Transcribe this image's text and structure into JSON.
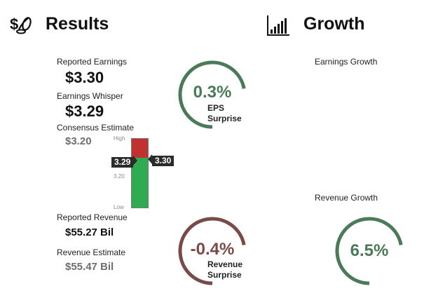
{
  "results": {
    "title": "Results",
    "icon": "money-coins-icon",
    "reported_earnings": {
      "label": "Reported Earnings",
      "value": "$3.30"
    },
    "earnings_whisper": {
      "label": "Earnings Whisper",
      "value": "$3.29"
    },
    "consensus_estimate": {
      "label": "Consensus Estimate",
      "value": "$3.20"
    },
    "reported_revenue": {
      "label": "Reported Revenue",
      "value": "$55.27 Bil"
    },
    "revenue_estimate": {
      "label": "Revenue Estimate",
      "value": "$55.47 Bil"
    }
  },
  "eps_scale": {
    "high_label": "High",
    "mid_label": "3.20",
    "low_label": "Low",
    "whisper_tag": "3.29",
    "reported_tag": "3.30",
    "red_color": "#c0322f",
    "green_color": "#2fac52",
    "whisper_level": 0.72
  },
  "eps_surprise": {
    "value": "0.3%",
    "line1": "EPS",
    "line2": "Surprise",
    "color": "#4a7a57",
    "arc_fraction": 0.72
  },
  "revenue_surprise": {
    "value": "-0.4%",
    "line1": "Revenue",
    "line2": "Surprise",
    "color": "#7a4a48",
    "arc_fraction": 0.72
  },
  "growth": {
    "title": "Growth",
    "icon": "bar-chart-icon",
    "earnings_growth_label": "Earnings Growth",
    "revenue_growth_label": "Revenue Growth",
    "revenue_growth_value": "6.5%",
    "color": "#4a7a57",
    "arc_fraction": 0.72
  }
}
